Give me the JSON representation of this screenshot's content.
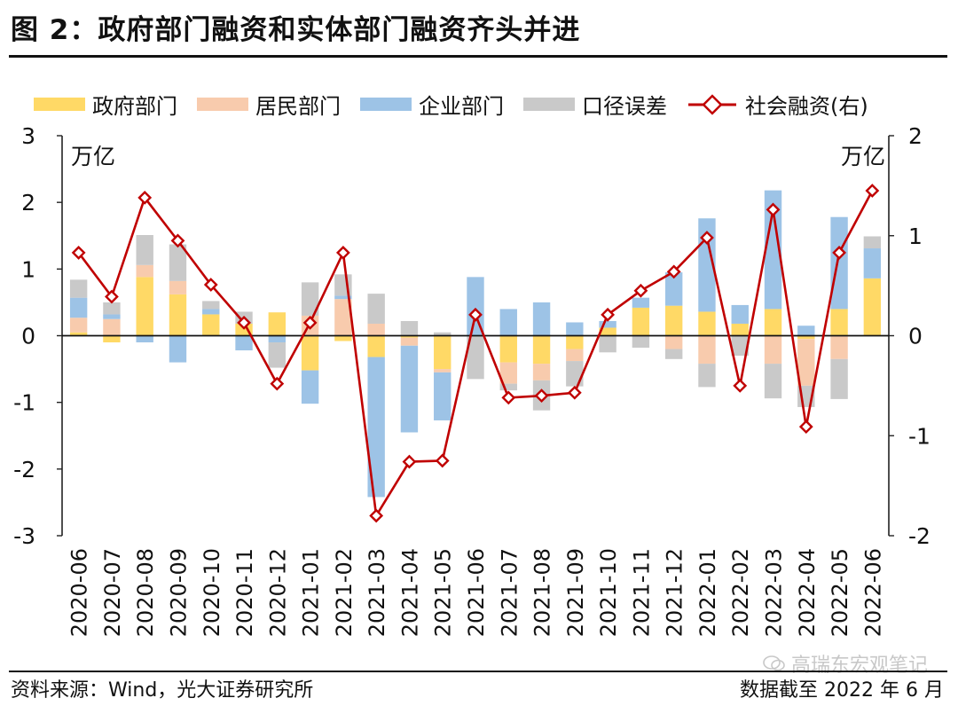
{
  "title": "图 2：政府部门融资和实体部门融资齐头并进",
  "legend": [
    {
      "label": "政府部门",
      "color": "#FFD966",
      "kind": "bar"
    },
    {
      "label": "居民部门",
      "color": "#F8CBAD",
      "kind": "bar"
    },
    {
      "label": "企业部门",
      "color": "#9DC3E6",
      "kind": "bar"
    },
    {
      "label": "口径误差",
      "color": "#C9C9C9",
      "kind": "bar"
    },
    {
      "label": "社会融资(右)",
      "color": "#C00000",
      "kind": "line"
    }
  ],
  "chart_data": {
    "type": "bar",
    "stacked": true,
    "title": "政府部门融资和实体部门融资齐头并进",
    "ylabel_left": "万亿",
    "ylabel_right": "万亿",
    "ylim_left": [
      -3,
      3
    ],
    "yticks_left": [
      -3,
      -2,
      -1,
      0,
      1,
      2,
      3
    ],
    "ylim_right": [
      -2,
      2
    ],
    "yticks_right": [
      -2,
      -1,
      0,
      1,
      2
    ],
    "categories": [
      "2020-06",
      "2020-07",
      "2020-08",
      "2020-09",
      "2020-10",
      "2020-11",
      "2020-12",
      "2021-01",
      "2021-02",
      "2021-03",
      "2021-04",
      "2021-05",
      "2021-06",
      "2021-07",
      "2021-08",
      "2021-09",
      "2021-10",
      "2021-11",
      "2021-12",
      "2022-01",
      "2022-02",
      "2022-03",
      "2022-04",
      "2022-05",
      "2022-06"
    ],
    "series": [
      {
        "name": "政府部门",
        "color": "#FFD966",
        "axis": "left",
        "values": [
          0.05,
          -0.1,
          0.88,
          0.62,
          0.32,
          0.18,
          0.35,
          -0.52,
          -0.08,
          -0.32,
          -0.03,
          -0.5,
          0.0,
          -0.4,
          -0.42,
          -0.2,
          0.12,
          0.42,
          0.45,
          0.36,
          0.18,
          0.4,
          -0.05,
          0.4,
          0.86
        ]
      },
      {
        "name": "居民部门",
        "color": "#F8CBAD",
        "axis": "left",
        "values": [
          0.22,
          0.25,
          0.18,
          0.2,
          0.0,
          0.0,
          0.0,
          0.3,
          0.55,
          0.18,
          -0.12,
          -0.05,
          0.0,
          -0.32,
          -0.25,
          -0.18,
          0.0,
          0.0,
          -0.2,
          -0.42,
          0.0,
          -0.42,
          -0.7,
          -0.35,
          0.0
        ]
      },
      {
        "name": "企业部门",
        "color": "#9DC3E6",
        "axis": "left",
        "values": [
          0.3,
          0.07,
          -0.1,
          -0.4,
          0.08,
          -0.22,
          -0.1,
          -0.5,
          0.05,
          -2.1,
          -1.3,
          -0.72,
          0.88,
          0.4,
          0.5,
          0.2,
          0.1,
          0.15,
          0.5,
          1.4,
          0.28,
          1.78,
          0.15,
          1.38,
          0.45
        ]
      },
      {
        "name": "口径误差",
        "color": "#C9C9C9",
        "axis": "left",
        "values": [
          0.27,
          0.18,
          0.45,
          0.55,
          0.12,
          0.18,
          -0.38,
          0.5,
          0.32,
          0.45,
          0.22,
          0.05,
          -0.65,
          -0.1,
          -0.45,
          -0.38,
          -0.25,
          -0.18,
          -0.15,
          -0.35,
          -0.3,
          -0.52,
          -0.32,
          -0.6,
          0.18
        ]
      },
      {
        "name": "社会融资(右)",
        "color": "#C00000",
        "axis": "right",
        "type": "line",
        "values": [
          0.83,
          0.39,
          1.38,
          0.95,
          0.51,
          0.13,
          -0.48,
          0.13,
          0.83,
          -1.8,
          -1.26,
          -1.25,
          0.21,
          -0.62,
          -0.6,
          -0.57,
          0.21,
          0.45,
          0.64,
          0.98,
          -0.5,
          1.26,
          -0.91,
          0.83,
          1.45
        ]
      }
    ]
  },
  "footer": {
    "source": "资料来源：Wind，光大证券研究所",
    "as_of": "数据截至 2022 年 6 月",
    "watermark": "高瑞东宏观笔记"
  }
}
